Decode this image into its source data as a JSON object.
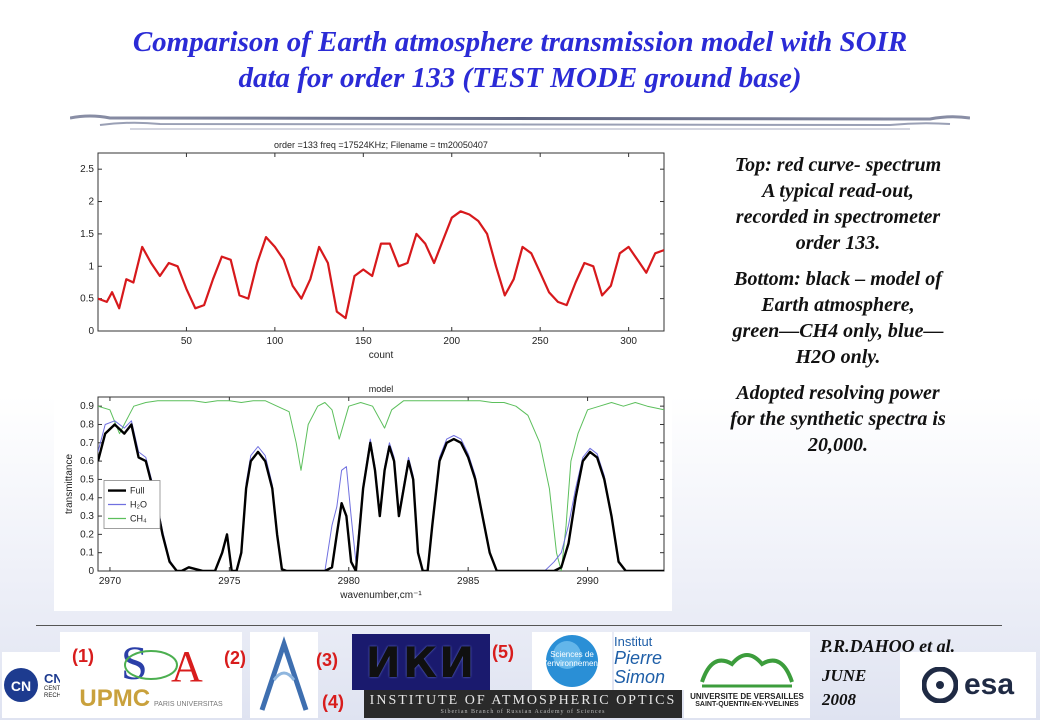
{
  "title_line1": "Comparison of Earth atmosphere transmission model with SOIR",
  "title_line2": "data for order 133 (TEST MODE ground base)",
  "side_text": {
    "p1_line1": "Top: red curve- spectrum",
    "p1_line2": "A typical read-out,",
    "p1_line3": "recorded in spectrometer",
    "p1_line4": "order 133.",
    "p2_line1": "Bottom: black – model of",
    "p2_line2": "Earth atmosphere,",
    "p2_line3": "green—CH4 only, blue—",
    "p2_line4": "H2O only.",
    "p3_line1": "Adopted resolving power",
    "p3_line2": "for the synthetic spectra is",
    "p3_line3": "20,000."
  },
  "footer": {
    "author": "P.R.DAHOO et al.",
    "date_line1": "JUNE",
    "date_line2": "2008",
    "labels": [
      "(1)",
      "(2)",
      "(3)",
      "(4)",
      "(5)"
    ],
    "logo_cnrs": "CNRS",
    "logo_cnrs_sub": "CENTRE NATIONAL DE LA RECHERCHE SCIENTIFIQUE",
    "logo_upmc": "UPMC",
    "logo_upmc_sub": "PARIS UNIVERSITAS",
    "logo_iki": "ИКИ",
    "logo_iao": "INSTITUTE OF ATMOSPHERIC OPTICS",
    "logo_iao_sub": "Siberian Branch of Russian Academy of Sciences",
    "logo_se": "Sciences de l'environnement",
    "logo_ips_1": "Institut",
    "logo_ips_2": "Pierre",
    "logo_ips_3": "Simon",
    "logo_uvsq_1": "UNIVERSITE DE VERSAILLES",
    "logo_uvsq_2": "SAINT-QUENTIN-EN-YVELINES",
    "logo_esa": "esa"
  },
  "colors": {
    "title": "#2b2bd6",
    "spectrum": "#d7191c",
    "full": "#000000",
    "h2o": "#7070e0",
    "ch4": "#5cbf5c",
    "label_red": "#d81c1c"
  },
  "chart_data": [
    {
      "type": "line",
      "title": "order =133 freq =17524KHz; Filename = tm20050407",
      "xlabel": "count",
      "ylabel": "",
      "xlim": [
        0,
        320
      ],
      "ylim": [
        0,
        2.75
      ],
      "xticks": [
        50,
        100,
        150,
        200,
        250,
        300
      ],
      "yticks": [
        0,
        0.5,
        1,
        1.5,
        2,
        2.5
      ],
      "series": [
        {
          "color": "#d7191c",
          "x": [
            0,
            5,
            8,
            12,
            16,
            20,
            25,
            30,
            35,
            40,
            45,
            50,
            55,
            60,
            65,
            70,
            75,
            80,
            85,
            90,
            95,
            100,
            105,
            110,
            115,
            120,
            125,
            130,
            135,
            140,
            145,
            150,
            155,
            160,
            165,
            170,
            175,
            180,
            185,
            190,
            195,
            200,
            205,
            210,
            215,
            220,
            225,
            230,
            235,
            240,
            245,
            250,
            255,
            260,
            265,
            270,
            275,
            280,
            285,
            290,
            295,
            300,
            305,
            310,
            315,
            320
          ],
          "y": [
            0.5,
            0.45,
            0.6,
            0.35,
            0.8,
            0.75,
            1.3,
            1.05,
            0.85,
            1.05,
            1.0,
            0.65,
            0.35,
            0.4,
            0.8,
            1.15,
            1.1,
            0.55,
            0.5,
            1.05,
            1.45,
            1.3,
            1.1,
            0.7,
            0.5,
            0.8,
            1.3,
            1.05,
            0.3,
            0.2,
            0.85,
            0.95,
            0.85,
            1.35,
            1.35,
            1.0,
            1.05,
            1.5,
            1.35,
            1.05,
            1.4,
            1.75,
            1.85,
            1.8,
            1.7,
            1.5,
            1.0,
            0.55,
            0.8,
            1.3,
            1.2,
            0.9,
            0.6,
            0.45,
            0.4,
            0.75,
            1.05,
            1.0,
            0.55,
            0.7,
            1.2,
            1.3,
            1.1,
            0.9,
            1.2,
            1.25
          ]
        }
      ]
    },
    {
      "type": "line",
      "title": "model",
      "xlabel": "wavenumber,cm⁻¹",
      "ylabel": "transmittance",
      "xlim": [
        2969.5,
        2993.2
      ],
      "ylim": [
        0,
        0.95
      ],
      "xticks": [
        2970,
        2975,
        2980,
        2985,
        2990
      ],
      "yticks": [
        0,
        0.1,
        0.2,
        0.3,
        0.4,
        0.5,
        0.6,
        0.7,
        0.8,
        0.9
      ],
      "legend": "left",
      "series": [
        {
          "name": "Full",
          "color": "#000000",
          "x": [
            2969.5,
            2969.8,
            2970.2,
            2970.6,
            2970.9,
            2971.2,
            2971.5,
            2971.9,
            2972.2,
            2972.5,
            2972.8,
            2973.0,
            2973.3,
            2973.6,
            2973.9,
            2974.1,
            2974.4,
            2974.7,
            2974.9,
            2975.1,
            2975.3,
            2975.5,
            2975.7,
            2975.9,
            2976.2,
            2976.5,
            2976.8,
            2977.0,
            2977.2,
            2977.4,
            2977.6,
            2977.8,
            2978.0,
            2978.3,
            2978.5,
            2978.8,
            2979.0,
            2979.3,
            2979.5,
            2979.7,
            2979.9,
            2980.1,
            2980.3,
            2980.6,
            2980.9,
            2981.1,
            2981.3,
            2981.5,
            2981.7,
            2981.9,
            2982.1,
            2982.3,
            2982.5,
            2982.7,
            2982.9,
            2983.1,
            2983.3,
            2983.5,
            2983.8,
            2984.1,
            2984.4,
            2984.7,
            2985.0,
            2985.3,
            2985.6,
            2985.9,
            2986.2,
            2986.5,
            2986.8,
            2987.1,
            2987.4,
            2987.8,
            2988.2,
            2988.6,
            2988.9,
            2989.2,
            2989.5,
            2989.8,
            2990.1,
            2990.4,
            2990.7,
            2991.0,
            2991.3,
            2991.6,
            2992.0,
            2992.4,
            2992.8,
            2993.2
          ],
          "y": [
            0.6,
            0.75,
            0.8,
            0.75,
            0.8,
            0.62,
            0.6,
            0.4,
            0.2,
            0.05,
            0.0,
            0.0,
            0.02,
            0.01,
            0.0,
            0.0,
            0.0,
            0.1,
            0.2,
            0.0,
            0.0,
            0.1,
            0.45,
            0.6,
            0.65,
            0.6,
            0.45,
            0.2,
            0.01,
            0.0,
            0.0,
            0.0,
            0.0,
            0.0,
            0.0,
            0.0,
            0.0,
            0.02,
            0.2,
            0.37,
            0.3,
            0.05,
            0.0,
            0.45,
            0.7,
            0.55,
            0.3,
            0.55,
            0.68,
            0.6,
            0.3,
            0.45,
            0.6,
            0.5,
            0.1,
            0.0,
            0.0,
            0.25,
            0.6,
            0.7,
            0.72,
            0.7,
            0.62,
            0.5,
            0.3,
            0.1,
            0.0,
            0.0,
            0.0,
            0.0,
            0.0,
            0.0,
            0.0,
            0.0,
            0.02,
            0.15,
            0.4,
            0.6,
            0.65,
            0.62,
            0.5,
            0.3,
            0.05,
            0.0,
            0.0,
            0.0,
            0.0,
            0.0
          ]
        },
        {
          "name": "H₂O",
          "color": "#7070e0",
          "x": [
            2969.5,
            2969.8,
            2970.2,
            2970.6,
            2970.9,
            2971.2,
            2971.5,
            2971.9,
            2972.2,
            2972.5,
            2972.8,
            2973.0,
            2973.3,
            2973.6,
            2973.9,
            2974.1,
            2974.4,
            2974.7,
            2974.9,
            2975.1,
            2975.3,
            2975.5,
            2975.7,
            2975.9,
            2976.2,
            2976.5,
            2976.8,
            2977.0,
            2977.2,
            2977.4,
            2977.6,
            2977.8,
            2978.0,
            2978.3,
            2978.5,
            2978.8,
            2979.0,
            2979.3,
            2979.5,
            2979.7,
            2979.9,
            2980.1,
            2980.3,
            2980.6,
            2980.9,
            2981.1,
            2981.3,
            2981.5,
            2981.7,
            2981.9,
            2982.1,
            2982.3,
            2982.5,
            2982.7,
            2982.9,
            2983.1,
            2983.3,
            2983.5,
            2983.8,
            2984.1,
            2984.4,
            2984.7,
            2985.0,
            2985.3,
            2985.6,
            2985.9,
            2986.2,
            2986.5,
            2986.8,
            2987.1,
            2987.4,
            2987.8,
            2988.2,
            2988.6,
            2988.9,
            2989.2,
            2989.5,
            2989.8,
            2990.1,
            2990.4,
            2990.7,
            2991.0,
            2991.3,
            2991.6,
            2992.0,
            2992.4,
            2992.8,
            2993.2
          ],
          "y": [
            0.65,
            0.8,
            0.82,
            0.78,
            0.82,
            0.65,
            0.62,
            0.42,
            0.22,
            0.06,
            0.0,
            0.0,
            0.02,
            0.01,
            0.0,
            0.0,
            0.0,
            0.1,
            0.2,
            0.0,
            0.0,
            0.1,
            0.48,
            0.63,
            0.68,
            0.63,
            0.47,
            0.2,
            0.01,
            0.0,
            0.0,
            0.0,
            0.0,
            0.0,
            0.0,
            0.0,
            0.0,
            0.25,
            0.35,
            0.55,
            0.57,
            0.3,
            0.05,
            0.47,
            0.72,
            0.57,
            0.32,
            0.57,
            0.7,
            0.62,
            0.32,
            0.47,
            0.62,
            0.52,
            0.1,
            0.0,
            0.0,
            0.27,
            0.62,
            0.72,
            0.74,
            0.72,
            0.64,
            0.52,
            0.3,
            0.1,
            0.0,
            0.0,
            0.0,
            0.0,
            0.0,
            0.0,
            0.0,
            0.05,
            0.1,
            0.25,
            0.45,
            0.62,
            0.67,
            0.64,
            0.52,
            0.3,
            0.05,
            0.0,
            0.0,
            0.0,
            0.0,
            0.0
          ]
        },
        {
          "name": "CH₄",
          "color": "#5cbf5c",
          "x": [
            2969.5,
            2970.0,
            2970.4,
            2970.8,
            2971.0,
            2971.5,
            2972.0,
            2972.5,
            2973.0,
            2973.5,
            2974.0,
            2974.5,
            2975.0,
            2975.5,
            2976.0,
            2976.5,
            2977.0,
            2977.5,
            2977.8,
            2978.0,
            2978.3,
            2978.7,
            2979.0,
            2979.3,
            2979.6,
            2980.0,
            2980.5,
            2981.0,
            2981.5,
            2981.8,
            2982.0,
            2982.3,
            2982.6,
            2983.0,
            2983.5,
            2984.0,
            2984.5,
            2985.0,
            2985.5,
            2986.0,
            2986.5,
            2987.0,
            2987.5,
            2988.0,
            2988.4,
            2988.7,
            2988.9,
            2989.1,
            2989.3,
            2989.6,
            2990.0,
            2990.5,
            2991.0,
            2991.5,
            2992.0,
            2992.5,
            2993.2
          ],
          "y": [
            0.9,
            0.88,
            0.75,
            0.85,
            0.9,
            0.92,
            0.93,
            0.93,
            0.93,
            0.93,
            0.92,
            0.93,
            0.93,
            0.92,
            0.93,
            0.93,
            0.9,
            0.87,
            0.7,
            0.55,
            0.8,
            0.9,
            0.92,
            0.88,
            0.72,
            0.9,
            0.92,
            0.9,
            0.78,
            0.88,
            0.9,
            0.93,
            0.93,
            0.93,
            0.93,
            0.93,
            0.93,
            0.93,
            0.93,
            0.92,
            0.92,
            0.9,
            0.85,
            0.7,
            0.45,
            0.1,
            0.0,
            0.25,
            0.6,
            0.75,
            0.88,
            0.9,
            0.92,
            0.9,
            0.92,
            0.9,
            0.88
          ]
        }
      ]
    }
  ]
}
